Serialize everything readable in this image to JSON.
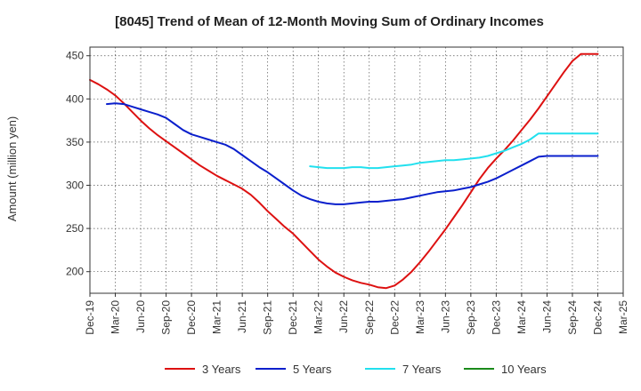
{
  "chart_data": {
    "type": "line",
    "title": "[8045]  Trend of Mean of 12-Month Moving Sum of Ordinary Incomes",
    "xlabel": "",
    "ylabel": "Amount (million yen)",
    "ylim": [
      175,
      460
    ],
    "yticks": [
      200,
      250,
      300,
      350,
      400,
      450
    ],
    "xticks": [
      "Dec-19",
      "Mar-20",
      "Jun-20",
      "Sep-20",
      "Dec-20",
      "Mar-21",
      "Jun-21",
      "Sep-21",
      "Dec-21",
      "Mar-22",
      "Jun-22",
      "Sep-22",
      "Dec-22",
      "Mar-23",
      "Jun-23",
      "Sep-23",
      "Dec-23",
      "Mar-24",
      "Jun-24",
      "Sep-24",
      "Dec-24",
      "Mar-25"
    ],
    "grid": true,
    "legend_position": "bottom",
    "series": [
      {
        "name": "3 Years",
        "color": "#dd1111",
        "x": [
          0,
          1,
          2,
          3,
          4,
          5,
          6,
          7,
          8,
          9,
          10,
          11,
          12,
          13,
          14,
          15,
          16,
          17,
          18,
          19,
          20,
          21,
          22,
          23,
          24,
          25,
          26,
          27,
          28,
          29,
          30,
          31,
          32,
          33,
          34,
          35,
          36,
          37,
          38,
          39,
          40,
          41,
          42,
          43,
          44,
          45,
          46,
          47,
          48,
          49,
          50,
          51,
          52,
          53,
          54,
          55,
          56,
          57,
          58,
          59,
          60
        ],
        "values": [
          422,
          417,
          411,
          404,
          395,
          385,
          375,
          366,
          358,
          351,
          344,
          337,
          330,
          323,
          317,
          311,
          306,
          301,
          296,
          289,
          280,
          270,
          261,
          252,
          244,
          234,
          224,
          214,
          206,
          199,
          194,
          190,
          187,
          185,
          182,
          181,
          184,
          191,
          200,
          211,
          223,
          236,
          249,
          263,
          277,
          292,
          307,
          320,
          331,
          341,
          352,
          364,
          376,
          389,
          403,
          417,
          431,
          444,
          452,
          452,
          452
        ]
      },
      {
        "name": "5 Years",
        "color": "#0a1fcc",
        "x": [
          2,
          3,
          4,
          5,
          6,
          7,
          8,
          9,
          10,
          11,
          12,
          13,
          14,
          15,
          16,
          17,
          18,
          19,
          20,
          21,
          22,
          23,
          24,
          25,
          26,
          27,
          28,
          29,
          30,
          31,
          32,
          33,
          34,
          35,
          36,
          37,
          38,
          39,
          40,
          41,
          42,
          43,
          44,
          45,
          46,
          47,
          48,
          49,
          50,
          51,
          52,
          53,
          54,
          55,
          56,
          57,
          58,
          59,
          60
        ],
        "values": [
          394,
          395,
          394,
          391,
          388,
          385,
          382,
          378,
          371,
          364,
          359,
          356,
          353,
          350,
          347,
          342,
          335,
          328,
          321,
          315,
          308,
          301,
          294,
          288,
          284,
          281,
          279,
          278,
          278,
          279,
          280,
          281,
          281,
          282,
          283,
          284,
          286,
          288,
          290,
          292,
          293,
          294,
          296,
          298,
          301,
          304,
          308,
          313,
          318,
          323,
          328,
          333,
          334,
          334,
          334,
          334,
          334,
          334,
          334
        ]
      },
      {
        "name": "7 Years",
        "color": "#22e0ee",
        "x": [
          26,
          27,
          28,
          29,
          30,
          31,
          32,
          33,
          34,
          35,
          36,
          37,
          38,
          39,
          40,
          41,
          42,
          43,
          44,
          45,
          46,
          47,
          48,
          49,
          50,
          51,
          52,
          53,
          54,
          55,
          56,
          57,
          58,
          59,
          60
        ],
        "values": [
          322,
          321,
          320,
          320,
          320,
          321,
          321,
          320,
          320,
          321,
          322,
          323,
          324,
          326,
          327,
          328,
          329,
          329,
          330,
          331,
          332,
          334,
          337,
          340,
          344,
          348,
          353,
          360,
          360,
          360,
          360,
          360,
          360,
          360,
          360
        ]
      },
      {
        "name": "10 Years",
        "color": "#1a8a1a",
        "x": [],
        "values": []
      }
    ]
  }
}
